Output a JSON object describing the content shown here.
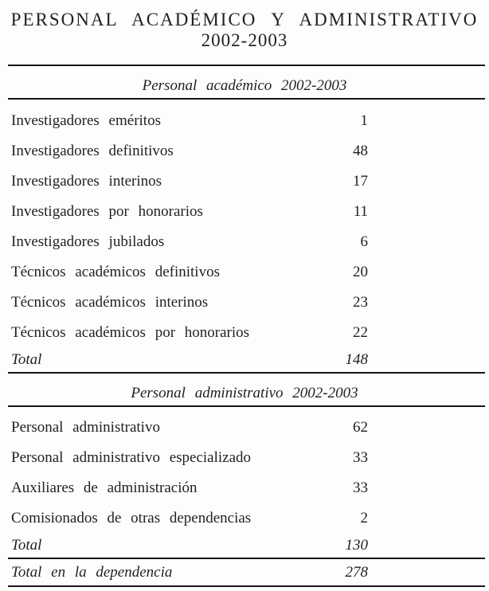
{
  "title": {
    "line1": "PERSONAL ACADÉMICO Y ADMINISTRATIVO",
    "line2": "2002-2003"
  },
  "sections": [
    {
      "heading": "Personal académico 2002-2003",
      "rows": [
        {
          "label": "Investigadores eméritos",
          "value": "1"
        },
        {
          "label": "Investigadores definitivos",
          "value": "48"
        },
        {
          "label": "Investigadores interinos",
          "value": "17"
        },
        {
          "label": "Investigadores por honorarios",
          "value": "11"
        },
        {
          "label": "Investigadores jubilados",
          "value": "6"
        },
        {
          "label": "Técnicos académicos definitivos",
          "value": "20"
        },
        {
          "label": "Técnicos académicos interinos",
          "value": "23"
        },
        {
          "label": "Técnicos académicos por honorarios",
          "value": "22"
        }
      ],
      "total": {
        "label": "Total",
        "value": "148"
      }
    },
    {
      "heading": "Personal administrativo 2002-2003",
      "rows": [
        {
          "label": "Personal administrativo",
          "value": "62"
        },
        {
          "label": "Personal administrativo especializado",
          "value": "33"
        },
        {
          "label": "Auxiliares de administración",
          "value": "33"
        },
        {
          "label": "Comisionados de otras dependencias",
          "value": "2"
        }
      ],
      "total": {
        "label": "Total",
        "value": "130"
      }
    }
  ],
  "grand_total": {
    "label": "Total en la dependencia",
    "value": "278"
  },
  "colors": {
    "text": "#1f1f26",
    "rule": "#15151b",
    "background": "#fdfdfc"
  }
}
